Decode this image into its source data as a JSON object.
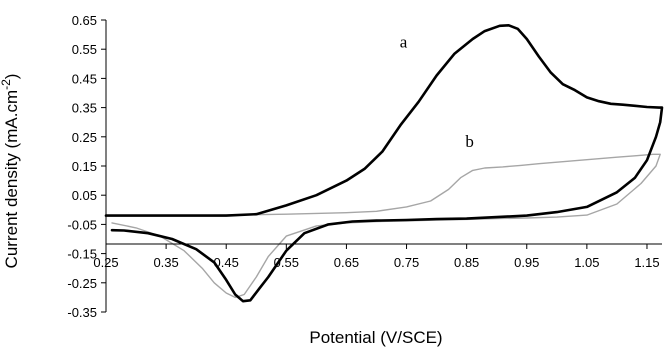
{
  "chart_data": {
    "type": "line",
    "xlabel": "Potential (V/SCE)",
    "ylabel": "Current density (mA.cm",
    "ylabel_superscript": "-2",
    "ylabel_close": ")",
    "xlim": [
      0.25,
      1.175
    ],
    "ylim": [
      -0.35,
      0.65
    ],
    "x_ticks": [
      "0.25",
      "0.35",
      "0.45",
      "0.55",
      "0.65",
      "0.75",
      "0.85",
      "0.95",
      "1.05",
      "1.15"
    ],
    "y_ticks": [
      "0.65",
      "0.55",
      "0.45",
      "0.35",
      "0.25",
      "0.15",
      "0.05",
      "-0.05",
      "-0.15",
      "-0.25",
      "-0.35"
    ],
    "grid": false,
    "series": [
      {
        "name": "a",
        "color": "#000000",
        "points": [
          [
            0.26,
            -0.07
          ],
          [
            0.28,
            -0.071
          ],
          [
            0.32,
            -0.08
          ],
          [
            0.36,
            -0.1
          ],
          [
            0.4,
            -0.135
          ],
          [
            0.43,
            -0.18
          ],
          [
            0.45,
            -0.24
          ],
          [
            0.465,
            -0.29
          ],
          [
            0.478,
            -0.313
          ],
          [
            0.49,
            -0.31
          ],
          [
            0.505,
            -0.27
          ],
          [
            0.52,
            -0.23
          ],
          [
            0.55,
            -0.14
          ],
          [
            0.58,
            -0.08
          ],
          [
            0.62,
            -0.05
          ],
          [
            0.66,
            -0.04
          ],
          [
            0.7,
            -0.037
          ],
          [
            0.75,
            -0.035
          ],
          [
            0.8,
            -0.032
          ],
          [
            0.85,
            -0.03
          ],
          [
            0.9,
            -0.025
          ],
          [
            0.95,
            -0.02
          ],
          [
            1.0,
            -0.008
          ],
          [
            1.05,
            0.01
          ],
          [
            1.1,
            0.06
          ],
          [
            1.13,
            0.11
          ],
          [
            1.15,
            0.17
          ],
          [
            1.165,
            0.25
          ],
          [
            1.172,
            0.3
          ],
          [
            1.175,
            0.35
          ],
          [
            1.17,
            0.35
          ],
          [
            1.15,
            0.352
          ],
          [
            1.13,
            0.356
          ],
          [
            1.11,
            0.36
          ],
          [
            1.09,
            0.363
          ],
          [
            1.07,
            0.372
          ],
          [
            1.05,
            0.385
          ],
          [
            1.03,
            0.41
          ],
          [
            1.01,
            0.43
          ],
          [
            0.99,
            0.47
          ],
          [
            0.97,
            0.525
          ],
          [
            0.95,
            0.585
          ],
          [
            0.935,
            0.62
          ],
          [
            0.92,
            0.632
          ],
          [
            0.905,
            0.63
          ],
          [
            0.88,
            0.612
          ],
          [
            0.86,
            0.585
          ],
          [
            0.83,
            0.535
          ],
          [
            0.8,
            0.46
          ],
          [
            0.77,
            0.37
          ],
          [
            0.74,
            0.29
          ],
          [
            0.71,
            0.2
          ],
          [
            0.68,
            0.14
          ],
          [
            0.65,
            0.1
          ],
          [
            0.6,
            0.05
          ],
          [
            0.55,
            0.015
          ],
          [
            0.5,
            -0.015
          ],
          [
            0.45,
            -0.02
          ],
          [
            0.35,
            -0.02
          ],
          [
            0.25,
            -0.02
          ]
        ]
      },
      {
        "name": "b",
        "color": "#a6a6a6",
        "points": [
          [
            0.26,
            -0.045
          ],
          [
            0.3,
            -0.062
          ],
          [
            0.34,
            -0.09
          ],
          [
            0.38,
            -0.14
          ],
          [
            0.41,
            -0.2
          ],
          [
            0.43,
            -0.25
          ],
          [
            0.45,
            -0.285
          ],
          [
            0.465,
            -0.3
          ],
          [
            0.48,
            -0.29
          ],
          [
            0.5,
            -0.23
          ],
          [
            0.52,
            -0.16
          ],
          [
            0.55,
            -0.09
          ],
          [
            0.6,
            -0.055
          ],
          [
            0.65,
            -0.045
          ],
          [
            0.7,
            -0.04
          ],
          [
            0.75,
            -0.038
          ],
          [
            0.8,
            -0.035
          ],
          [
            0.85,
            -0.033
          ],
          [
            0.9,
            -0.03
          ],
          [
            0.95,
            -0.028
          ],
          [
            1.0,
            -0.025
          ],
          [
            1.05,
            -0.018
          ],
          [
            1.1,
            0.02
          ],
          [
            1.14,
            0.09
          ],
          [
            1.165,
            0.15
          ],
          [
            1.172,
            0.19
          ],
          [
            1.16,
            0.19
          ],
          [
            1.13,
            0.185
          ],
          [
            1.1,
            0.18
          ],
          [
            1.07,
            0.175
          ],
          [
            1.03,
            0.168
          ],
          [
            1.0,
            0.163
          ],
          [
            0.97,
            0.158
          ],
          [
            0.94,
            0.152
          ],
          [
            0.91,
            0.147
          ],
          [
            0.88,
            0.143
          ],
          [
            0.86,
            0.135
          ],
          [
            0.84,
            0.11
          ],
          [
            0.82,
            0.07
          ],
          [
            0.79,
            0.03
          ],
          [
            0.75,
            0.01
          ],
          [
            0.7,
            -0.005
          ],
          [
            0.65,
            -0.01
          ],
          [
            0.55,
            -0.015
          ],
          [
            0.45,
            -0.018
          ],
          [
            0.35,
            -0.02
          ],
          [
            0.25,
            -0.02
          ]
        ]
      }
    ],
    "annotations": [
      {
        "text": "a",
        "x": 0.745,
        "y": 0.555
      },
      {
        "text": "b",
        "x": 0.855,
        "y": 0.215
      }
    ]
  }
}
